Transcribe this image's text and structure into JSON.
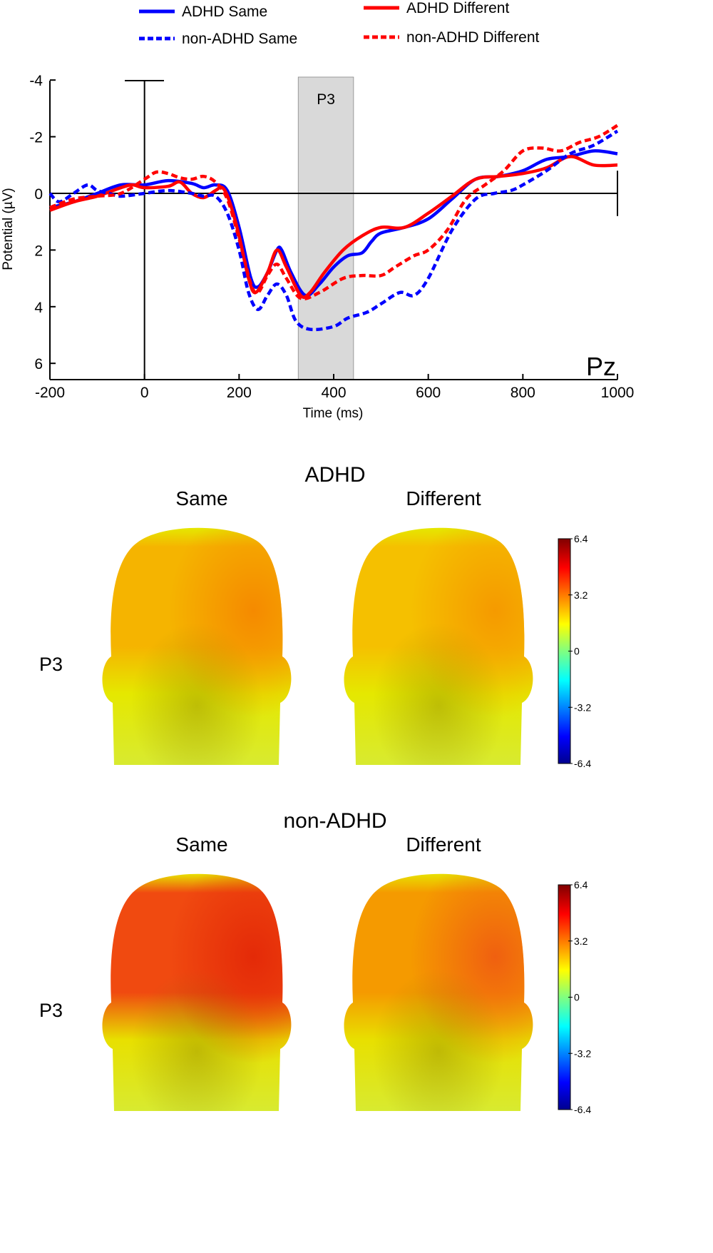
{
  "chart_data": {
    "type": "line",
    "channel_label": "Pz",
    "xlabel": "Time (ms)",
    "ylabel": "Potential (µV)",
    "xlim": [
      -200,
      1000
    ],
    "ylim": [
      -4,
      6.5
    ],
    "y_inverted": true,
    "x_ticks": [
      -200,
      0,
      200,
      400,
      600,
      800,
      1000
    ],
    "y_ticks": [
      -4,
      -2,
      0,
      2,
      4,
      6
    ],
    "grid": false,
    "legend_placement": "top",
    "window": {
      "label": "P3",
      "start": 325,
      "end": 442,
      "color": "#d9d9d9"
    },
    "series": [
      {
        "name": "ADHD Same",
        "color": "#0000ff",
        "dash": false,
        "x": [
          -200,
          -150,
          -100,
          -50,
          0,
          50,
          100,
          125,
          150,
          175,
          200,
          225,
          240,
          260,
          280,
          290,
          310,
          340,
          370,
          400,
          430,
          460,
          480,
          500,
          550,
          600,
          650,
          700,
          750,
          800,
          850,
          900,
          950,
          1000
        ],
        "y": [
          0.5,
          0.3,
          0,
          -0.3,
          -0.3,
          -0.45,
          -0.35,
          -0.2,
          -0.3,
          -0.1,
          1.2,
          3.0,
          3.3,
          2.8,
          2.0,
          2.0,
          2.8,
          3.6,
          3.2,
          2.6,
          2.2,
          2.1,
          1.7,
          1.4,
          1.2,
          0.9,
          0.2,
          -0.5,
          -0.6,
          -0.8,
          -1.2,
          -1.3,
          -1.5,
          -1.4
        ]
      },
      {
        "name": "ADHD Different",
        "color": "#ff0000",
        "dash": false,
        "x": [
          -200,
          -150,
          -100,
          -50,
          -25,
          0,
          50,
          75,
          100,
          125,
          150,
          165,
          180,
          200,
          220,
          235,
          260,
          280,
          300,
          330,
          350,
          380,
          420,
          460,
          500,
          550,
          600,
          650,
          700,
          750,
          800,
          850,
          900,
          950,
          1000
        ],
        "y": [
          0.6,
          0.3,
          0.1,
          -0.2,
          -0.3,
          -0.2,
          -0.25,
          -0.4,
          0,
          0.15,
          -0.1,
          -0.2,
          0.3,
          1.5,
          3.0,
          3.5,
          2.8,
          2.0,
          2.6,
          3.6,
          3.5,
          2.8,
          2.0,
          1.5,
          1.2,
          1.2,
          0.7,
          0.1,
          -0.5,
          -0.6,
          -0.7,
          -0.9,
          -1.3,
          -1.0,
          -1.0
        ]
      },
      {
        "name": "non-ADHD Same",
        "color": "#0000ff",
        "dash": true,
        "x": [
          -200,
          -180,
          -150,
          -120,
          -100,
          -75,
          -50,
          0,
          50,
          100,
          125,
          150,
          175,
          200,
          220,
          240,
          260,
          280,
          300,
          320,
          350,
          400,
          430,
          470,
          500,
          540,
          570,
          600,
          650,
          700,
          740,
          775,
          800,
          850,
          900,
          950,
          1000
        ],
        "y": [
          0,
          0.3,
          0,
          -0.3,
          -0.1,
          0,
          0.1,
          0,
          -0.1,
          0,
          0.1,
          0.1,
          0.7,
          2.0,
          3.5,
          4.1,
          3.6,
          3.2,
          3.6,
          4.5,
          4.8,
          4.7,
          4.4,
          4.2,
          3.9,
          3.5,
          3.6,
          3.0,
          1.3,
          0.2,
          0,
          -0.1,
          -0.3,
          -0.8,
          -1.4,
          -1.7,
          -2.2
        ]
      },
      {
        "name": "non-ADHD Different",
        "color": "#ff0000",
        "dash": true,
        "x": [
          -200,
          -150,
          -100,
          -50,
          0,
          25,
          50,
          75,
          100,
          125,
          150,
          175,
          200,
          225,
          240,
          260,
          280,
          300,
          330,
          370,
          420,
          460,
          500,
          530,
          570,
          600,
          640,
          680,
          720,
          760,
          800,
          840,
          880,
          920,
          960,
          1000
        ],
        "y": [
          0.5,
          0.2,
          0.1,
          0,
          -0.5,
          -0.75,
          -0.7,
          -0.55,
          -0.5,
          -0.6,
          -0.4,
          0.2,
          1.6,
          3.2,
          3.5,
          2.9,
          2.5,
          3.0,
          3.7,
          3.5,
          3.0,
          2.9,
          2.9,
          2.6,
          2.2,
          2.0,
          1.3,
          0.2,
          -0.3,
          -0.8,
          -1.5,
          -1.6,
          -1.5,
          -1.8,
          -2.0,
          -2.4
        ]
      }
    ]
  },
  "topomaps": {
    "component_label": "P3",
    "colorbar": {
      "ticks": [
        "6.4",
        "3.2",
        "0",
        "-3.2",
        "-6.4"
      ],
      "colormap": "jet",
      "range": [
        -6.4,
        6.4
      ]
    },
    "groups": [
      {
        "title": "ADHD",
        "conditions": [
          {
            "label": "Same",
            "top": "#f5b400",
            "hot": "#f58a00",
            "low": "#e5e800"
          },
          {
            "label": "Different",
            "top": "#f5c000",
            "hot": "#f59a00",
            "low": "#e5e800"
          }
        ]
      },
      {
        "title": "non-ADHD",
        "conditions": [
          {
            "label": "Same",
            "top": "#f04a10",
            "hot": "#e42a08",
            "low": "#e8e000"
          },
          {
            "label": "Different",
            "top": "#f59a00",
            "hot": "#f06010",
            "low": "#e8e000"
          }
        ]
      }
    ]
  }
}
